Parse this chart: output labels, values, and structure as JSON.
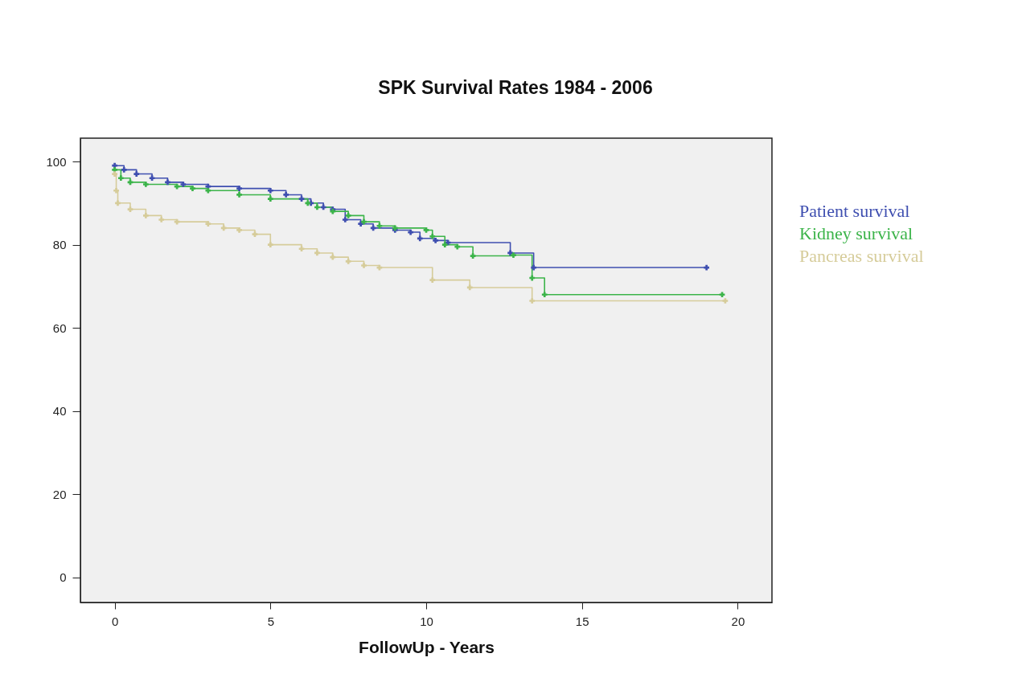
{
  "chart_data": {
    "type": "step",
    "title": "SPK Survival Rates 1984 - 2006",
    "xlabel": "FollowUp - Years",
    "xlim": [
      -1.1,
      21.1
    ],
    "xticks": [
      0,
      5,
      10,
      15,
      20
    ],
    "ylim": [
      -6,
      105.6
    ],
    "yticks": [
      0,
      20,
      40,
      60,
      80,
      100
    ],
    "grid": false,
    "legend": "right",
    "marker": "cross",
    "line_style": "solid",
    "series": [
      {
        "name": "Patient survival",
        "color": "#3f4fb0",
        "x": [
          0,
          0.3,
          0.7,
          1.2,
          1.7,
          2.2,
          3,
          4,
          5,
          5.5,
          6,
          6.3,
          6.7,
          7,
          7.4,
          7.9,
          8.3,
          9,
          9.5,
          9.8,
          10.3,
          10.7,
          12.7,
          13.45,
          19
        ],
        "values": [
          99,
          98,
          97,
          96,
          95,
          94.5,
          94,
          93.5,
          93,
          92,
          91,
          90,
          89,
          88.5,
          86,
          85,
          84,
          83.5,
          83,
          81.5,
          81,
          80.5,
          78,
          74.5,
          74.5
        ]
      },
      {
        "name": "Kidney survival",
        "color": "#3cb44a",
        "x": [
          0,
          0.2,
          0.5,
          1,
          2,
          2.5,
          3,
          4,
          5,
          6.2,
          6.5,
          7,
          7.5,
          8,
          8.5,
          9,
          10,
          10.2,
          10.6,
          11,
          11.5,
          12.8,
          13.4,
          13.8,
          19.5
        ],
        "values": [
          98,
          96,
          95,
          94.5,
          94,
          93.5,
          93,
          92,
          91,
          90,
          89,
          88,
          87,
          85.5,
          84.5,
          84,
          83.5,
          82,
          80,
          79.5,
          77.3,
          77.5,
          72,
          68,
          68
        ]
      },
      {
        "name": "Pancreas survival",
        "color": "#d6cc9a",
        "x": [
          0,
          0.05,
          0.1,
          0.5,
          1,
          1.5,
          2,
          3,
          3.5,
          4,
          4.5,
          5,
          6,
          6.5,
          7,
          7.5,
          8,
          8.5,
          10.2,
          11.4,
          13.4,
          19.6
        ],
        "values": [
          97,
          93,
          90,
          88.5,
          87,
          86,
          85.5,
          85,
          84,
          83.5,
          82.5,
          80,
          79,
          78,
          77,
          76,
          75,
          74.5,
          71.5,
          69.7,
          66.5,
          66.5
        ]
      }
    ]
  }
}
